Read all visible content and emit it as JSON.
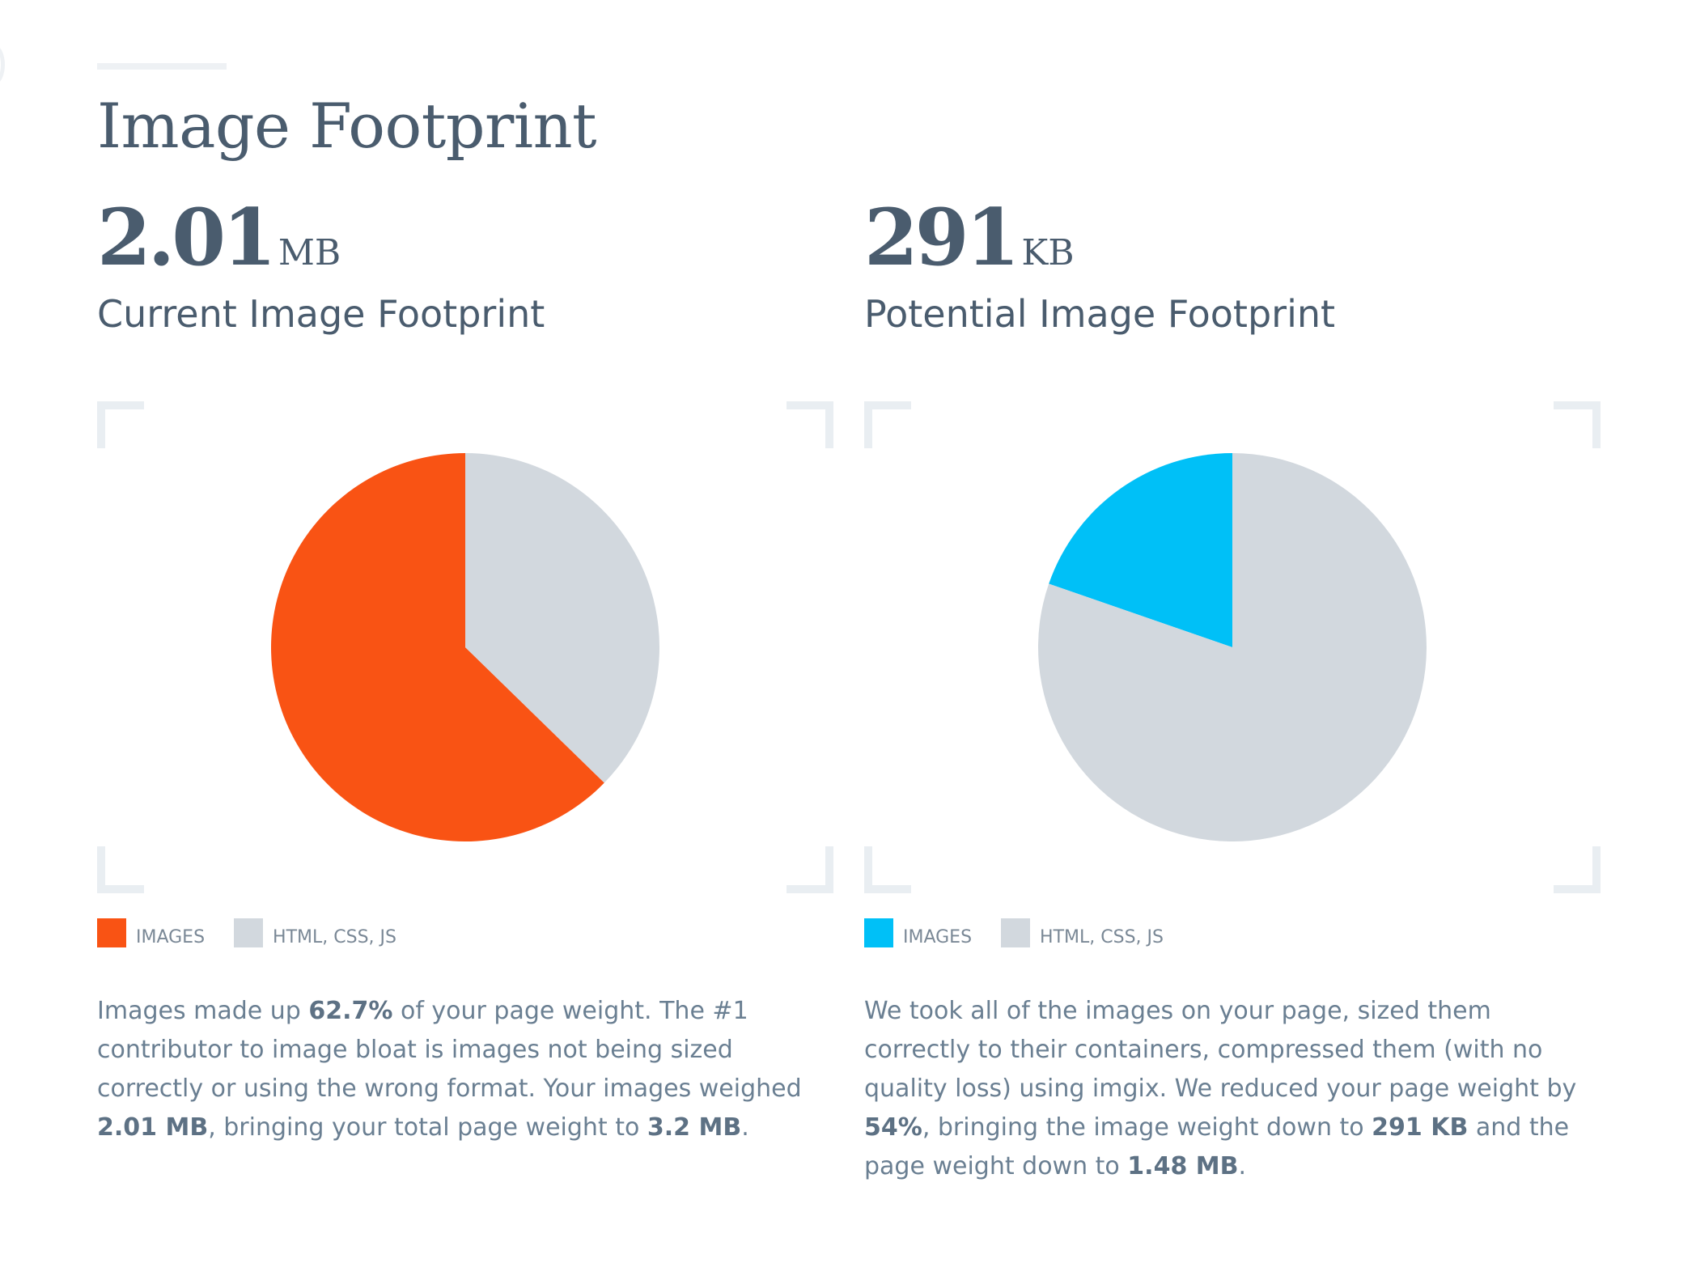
{
  "page": {
    "title": "Image Footprint"
  },
  "current": {
    "value": "2.01",
    "unit": "MB",
    "label": "Current Image Footprint",
    "legend": [
      {
        "label": "IMAGES",
        "color": "#f95314"
      },
      {
        "label": "HTML, CSS, JS",
        "color": "#d2d8de"
      }
    ],
    "description": [
      {
        "text": "Images made up "
      },
      {
        "text": "62.7%",
        "bold": true
      },
      {
        "text": " of your page weight. The #1 contributor to image bloat is images not being sized correctly or using the wrong format. Your images weighed "
      },
      {
        "text": "2.01 MB",
        "bold": true
      },
      {
        "text": ", bringing your total page weight to "
      },
      {
        "text": "3.2 MB",
        "bold": true
      },
      {
        "text": "."
      }
    ]
  },
  "potential": {
    "value": "291",
    "unit": "KB",
    "label": "Potential Image Footprint",
    "legend": [
      {
        "label": "IMAGES",
        "color": "#00c0f7"
      },
      {
        "label": "HTML, CSS, JS",
        "color": "#d2d8de"
      }
    ],
    "description": [
      {
        "text": "We took all of the images on your page, sized them correctly to their containers, compressed them (with no quality loss) using imgix. We reduced your page weight by "
      },
      {
        "text": "54%",
        "bold": true
      },
      {
        "text": ", bringing the image weight down to "
      },
      {
        "text": "291 KB",
        "bold": true
      },
      {
        "text": " and the page weight down to "
      },
      {
        "text": "1.48 MB",
        "bold": true
      },
      {
        "text": "."
      }
    ]
  },
  "chart_data": [
    {
      "type": "pie",
      "title": "Current Image Footprint",
      "start": "top",
      "direction": "counterclockwise",
      "slices": [
        {
          "label": "IMAGES",
          "value": 62.7,
          "color": "#f95314"
        },
        {
          "label": "HTML, CSS, JS",
          "value": 37.3,
          "color": "#d2d8de"
        }
      ]
    },
    {
      "type": "pie",
      "title": "Potential Image Footprint",
      "start": "top",
      "direction": "counterclockwise",
      "slices": [
        {
          "label": "IMAGES",
          "value": 19.7,
          "color": "#00c0f7"
        },
        {
          "label": "HTML, CSS, JS",
          "value": 80.3,
          "color": "#d2d8de"
        }
      ]
    }
  ]
}
